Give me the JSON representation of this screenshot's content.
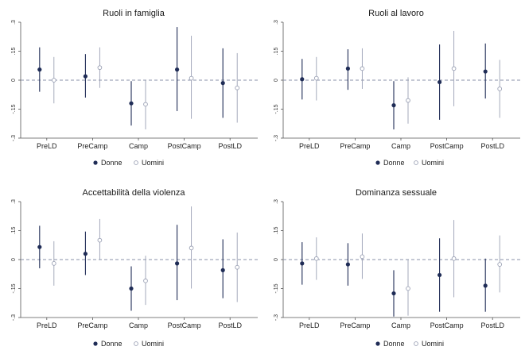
{
  "colors": {
    "donne": "#1f2c56",
    "uomini": "#9aa0b4",
    "axis": "#555555",
    "zero": "#8a90a8"
  },
  "legend": {
    "donne": "Donne",
    "uomini": "Uomini"
  },
  "chart_data": [
    {
      "type": "scatter",
      "title": "Ruoli in famiglia",
      "categories": [
        "PreLD",
        "PreCamp",
        "Camp",
        "PostCamp",
        "PostLD"
      ],
      "ylim": [
        -0.3,
        0.3
      ],
      "yticks": [
        -0.3,
        -0.15,
        0,
        0.15,
        0.3
      ],
      "ytick_labels": [
        "-.3",
        "-.15",
        "0",
        ".15",
        ".3"
      ],
      "series": [
        {
          "name": "Donne",
          "values": [
            0.055,
            0.02,
            -0.12,
            0.055,
            -0.015
          ],
          "ci_low": [
            -0.06,
            -0.09,
            -0.235,
            -0.16,
            -0.195
          ],
          "ci_high": [
            0.17,
            0.135,
            -0.005,
            0.275,
            0.165
          ]
        },
        {
          "name": "Uomini",
          "values": [
            0.0,
            0.065,
            -0.125,
            0.01,
            -0.04
          ],
          "ci_low": [
            -0.12,
            -0.04,
            -0.255,
            -0.2,
            -0.22
          ],
          "ci_high": [
            0.12,
            0.17,
            0.0,
            0.23,
            0.14
          ]
        }
      ]
    },
    {
      "type": "scatter",
      "title": "Ruoli al lavoro",
      "categories": [
        "PreLD",
        "PreCamp",
        "Camp",
        "PostCamp",
        "PostLD"
      ],
      "ylim": [
        -0.3,
        0.3
      ],
      "yticks": [
        -0.3,
        -0.15,
        0,
        0.15,
        0.3
      ],
      "ytick_labels": [
        "-.3",
        "-.15",
        "0",
        ".15",
        ".3"
      ],
      "series": [
        {
          "name": "Donne",
          "values": [
            0.005,
            0.06,
            -0.13,
            -0.01,
            0.045
          ],
          "ci_low": [
            -0.1,
            -0.05,
            -0.255,
            -0.205,
            -0.095
          ],
          "ci_high": [
            0.11,
            0.16,
            -0.005,
            0.185,
            0.19
          ]
        },
        {
          "name": "Uomini",
          "values": [
            0.01,
            0.06,
            -0.105,
            0.06,
            -0.045
          ],
          "ci_low": [
            -0.105,
            -0.045,
            -0.225,
            -0.135,
            -0.195
          ],
          "ci_high": [
            0.12,
            0.165,
            0.015,
            0.255,
            0.105
          ]
        }
      ]
    },
    {
      "type": "scatter",
      "title": "Accettabilità della violenza",
      "categories": [
        "PreLD",
        "PreCamp",
        "Camp",
        "PostCamp",
        "PostLD"
      ],
      "ylim": [
        -0.3,
        0.3
      ],
      "yticks": [
        -0.3,
        -0.15,
        0,
        0.15,
        0.3
      ],
      "ytick_labels": [
        "-.3",
        "-.15",
        "0",
        ".15",
        ".3"
      ],
      "series": [
        {
          "name": "Donne",
          "values": [
            0.065,
            0.03,
            -0.15,
            -0.02,
            -0.055
          ],
          "ci_low": [
            -0.045,
            -0.08,
            -0.265,
            -0.21,
            -0.2
          ],
          "ci_high": [
            0.175,
            0.145,
            -0.035,
            0.18,
            0.105
          ]
        },
        {
          "name": "Uomini",
          "values": [
            -0.02,
            0.1,
            -0.11,
            0.06,
            -0.04
          ],
          "ci_low": [
            -0.135,
            0.0,
            -0.235,
            -0.15,
            -0.22
          ],
          "ci_high": [
            0.095,
            0.21,
            0.02,
            0.275,
            0.14
          ]
        }
      ]
    },
    {
      "type": "scatter",
      "title": "Dominanza sessuale",
      "categories": [
        "PreLD",
        "PreCamp",
        "Camp",
        "PostCamp",
        "PostLD"
      ],
      "ylim": [
        -0.3,
        0.3
      ],
      "yticks": [
        -0.3,
        -0.15,
        0,
        0.15,
        0.3
      ],
      "ytick_labels": [
        "-.3",
        "-.15",
        "0",
        ".15",
        ".3"
      ],
      "series": [
        {
          "name": "Donne",
          "values": [
            -0.02,
            -0.025,
            -0.175,
            -0.08,
            -0.135
          ],
          "ci_low": [
            -0.13,
            -0.135,
            -0.295,
            -0.27,
            -0.27
          ],
          "ci_high": [
            0.09,
            0.085,
            -0.055,
            0.11,
            0.005
          ]
        },
        {
          "name": "Uomini",
          "values": [
            0.005,
            0.015,
            -0.15,
            0.005,
            -0.025
          ],
          "ci_low": [
            -0.105,
            -0.1,
            -0.29,
            -0.195,
            -0.17
          ],
          "ci_high": [
            0.115,
            0.135,
            0.0,
            0.205,
            0.125
          ]
        }
      ]
    }
  ]
}
